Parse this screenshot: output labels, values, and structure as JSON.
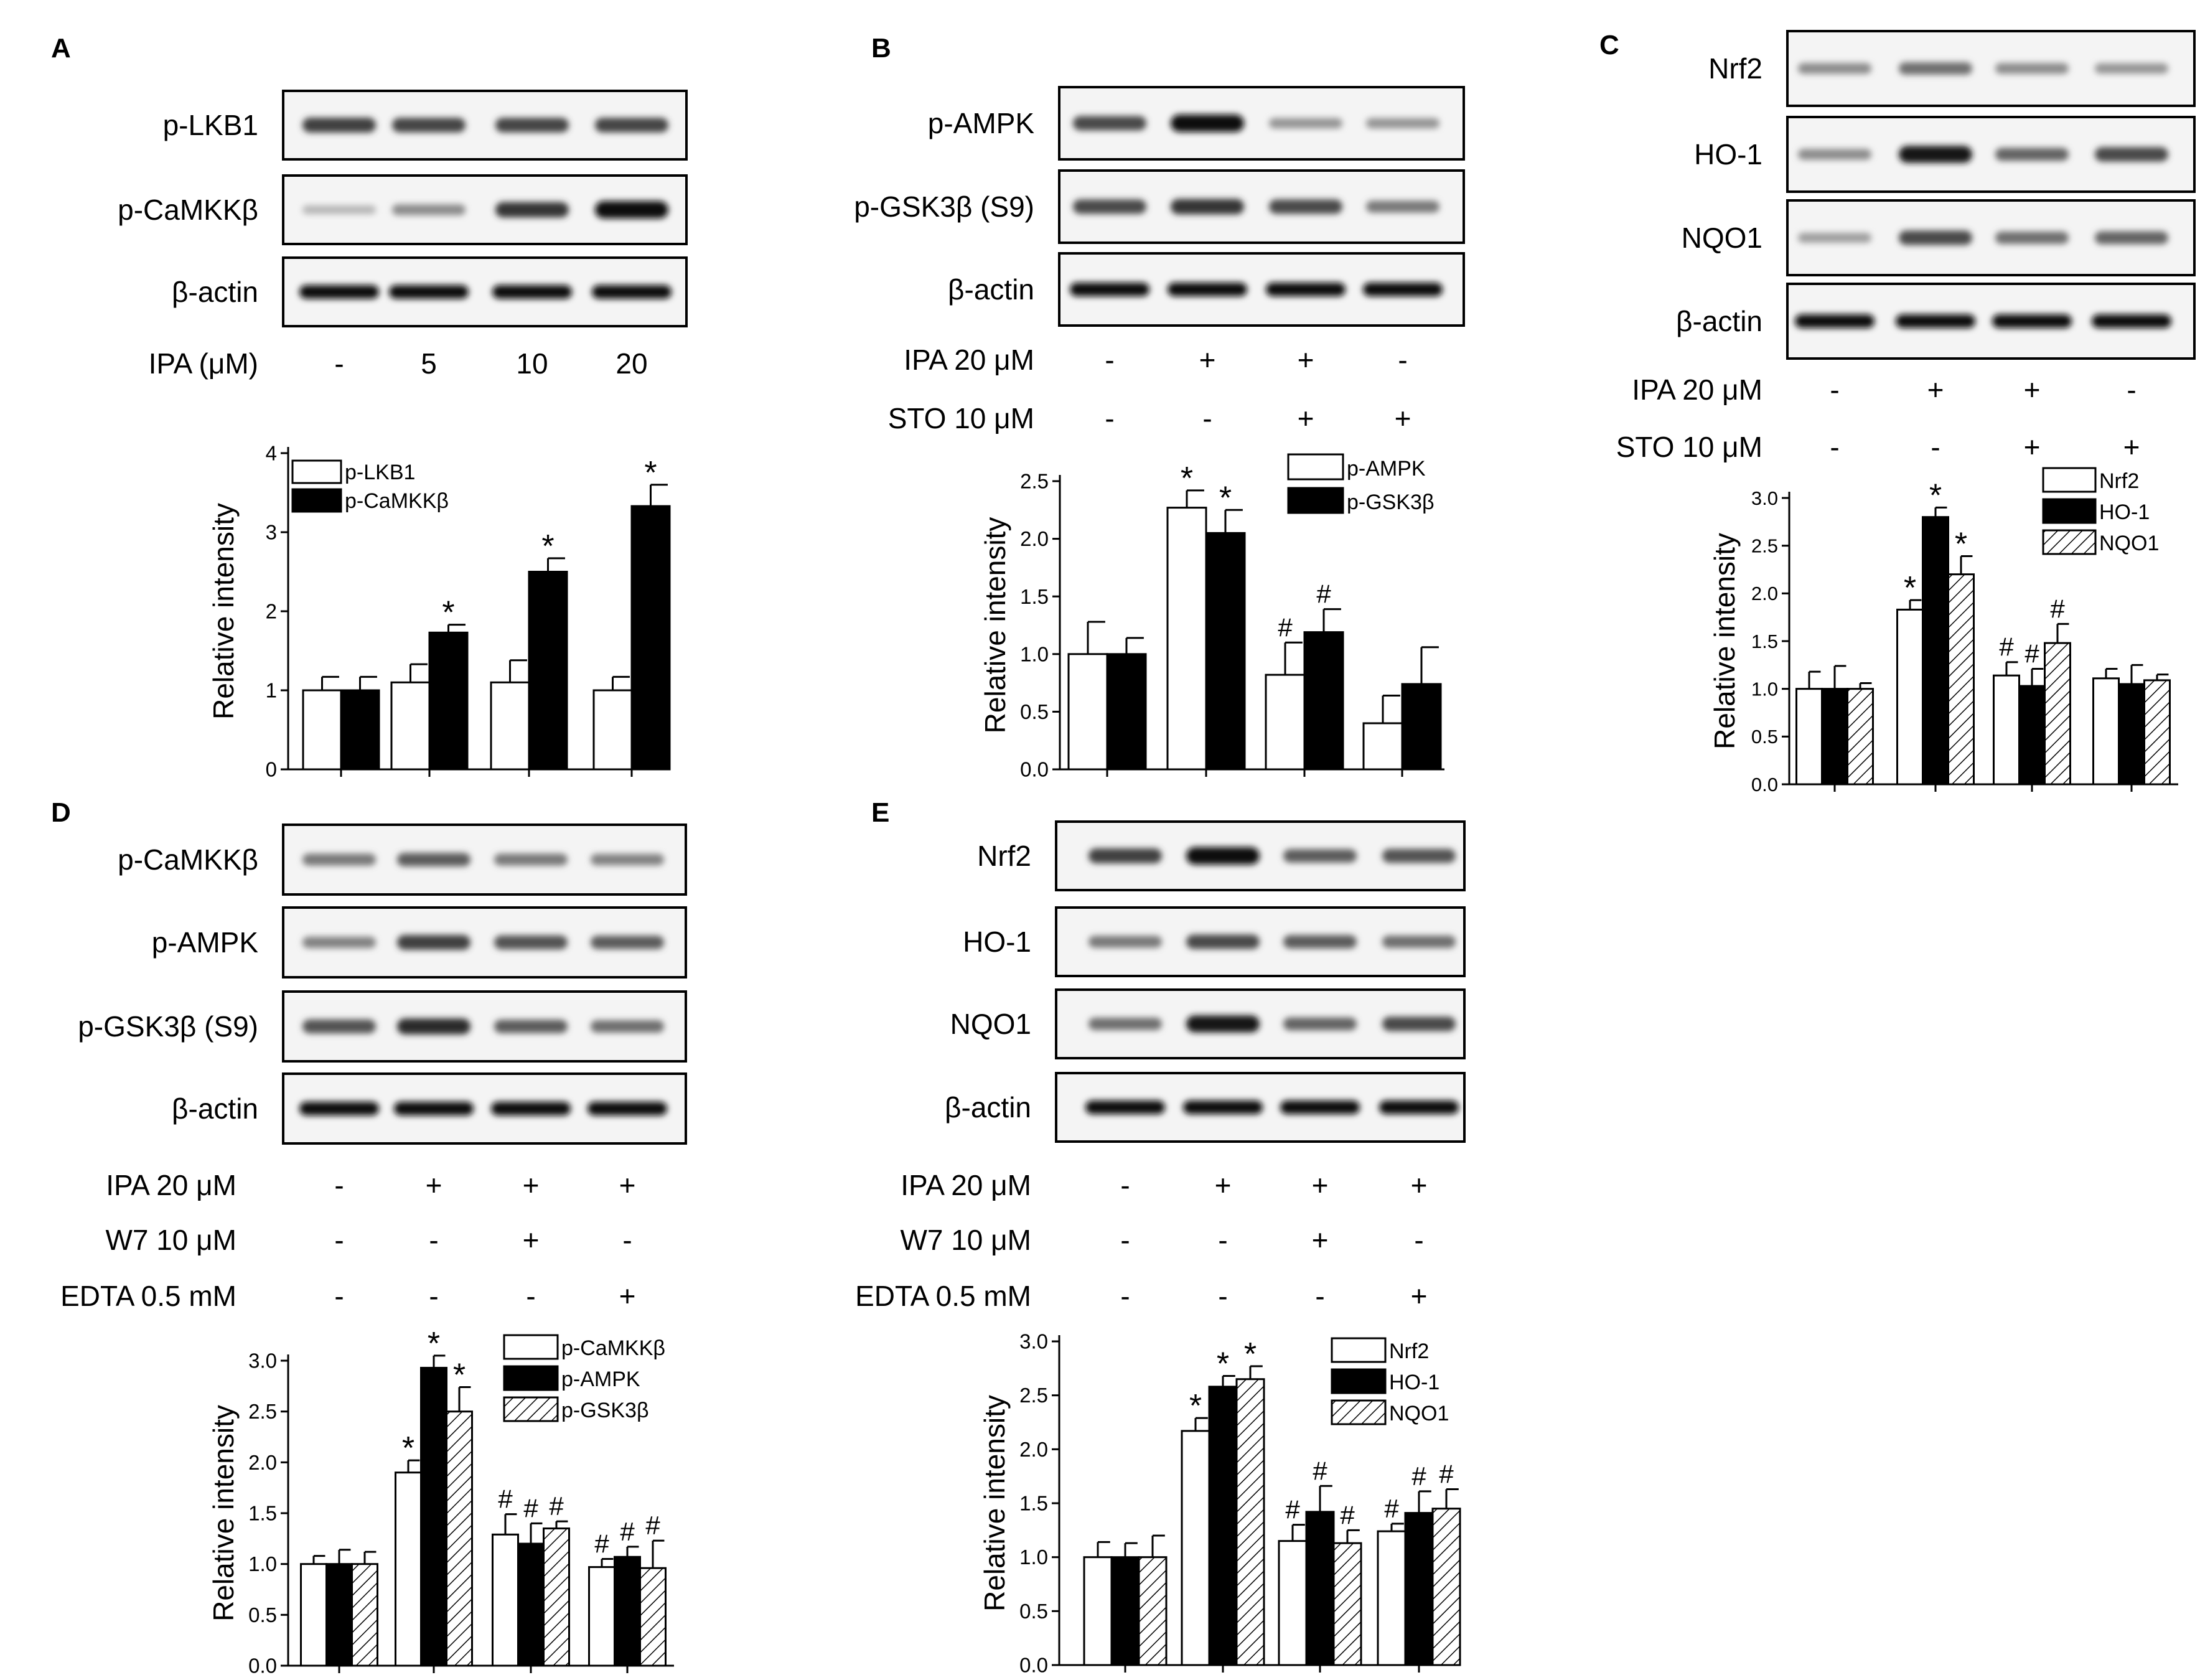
{
  "panels": [
    {
      "id": "A",
      "blot_rows": [
        "p-LKB1",
        "p-CaMKKβ",
        "β-actin"
      ],
      "band_intensity": [
        [
          0.75,
          0.72,
          0.72,
          0.72
        ],
        [
          0.12,
          0.35,
          0.8,
          1.0
        ],
        [
          1,
          1,
          1,
          1
        ]
      ],
      "conditions": [
        {
          "label": "IPA (μM)",
          "values": [
            "-",
            "5",
            "10",
            "20"
          ]
        }
      ],
      "chart_data": {
        "type": "bar",
        "ylabel": "Relative intensity",
        "ylim": [
          0,
          4
        ],
        "yticks": [
          "0",
          "1",
          "2",
          "3",
          "4"
        ],
        "series": [
          {
            "name": "p-LKB1",
            "fill": "white",
            "values": [
              1.0,
              1.1,
              1.1,
              1.0
            ],
            "errors": [
              0.17,
              0.23,
              0.28,
              0.17
            ],
            "marks": [
              "",
              "",
              "",
              ""
            ]
          },
          {
            "name": "p-CaMKKβ",
            "fill": "black",
            "values": [
              1.0,
              1.73,
              2.5,
              3.33
            ],
            "errors": [
              0.17,
              0.1,
              0.17,
              0.27
            ],
            "marks": [
              "",
              "*",
              "*",
              "*"
            ]
          }
        ]
      }
    },
    {
      "id": "B",
      "blot_rows": [
        "p-AMPK",
        "p-GSK3β (S9)",
        "β-actin"
      ],
      "band_intensity": [
        [
          0.7,
          1.0,
          0.3,
          0.3
        ],
        [
          0.7,
          0.8,
          0.7,
          0.45
        ],
        [
          1,
          1,
          1,
          1
        ]
      ],
      "conditions": [
        {
          "label": "IPA 20 μM",
          "values": [
            "-",
            "+",
            "+",
            "-"
          ]
        },
        {
          "label": "STO 10 μM",
          "values": [
            "-",
            "-",
            "+",
            "+"
          ]
        }
      ],
      "chart_data": {
        "type": "bar",
        "ylabel": "Relative intensity",
        "ylim": [
          0,
          2.5
        ],
        "yticks": [
          "0.0",
          "0.5",
          "1.0",
          "1.5",
          "2.0",
          "2.5"
        ],
        "series": [
          {
            "name": "p-AMPK",
            "fill": "white",
            "values": [
              1.0,
              2.27,
              0.82,
              0.4
            ],
            "errors": [
              0.28,
              0.15,
              0.28,
              0.24
            ],
            "marks": [
              "",
              "*",
              "#",
              ""
            ]
          },
          {
            "name": "p-GSK3β",
            "fill": "black",
            "values": [
              1.0,
              2.05,
              1.19,
              0.74
            ],
            "errors": [
              0.14,
              0.2,
              0.2,
              0.32
            ],
            "marks": [
              "",
              "*",
              "#",
              ""
            ]
          }
        ]
      }
    },
    {
      "id": "C",
      "blot_rows": [
        "Nrf2",
        "HO-1",
        "NQO1",
        "β-actin"
      ],
      "band_intensity": [
        [
          0.35,
          0.5,
          0.35,
          0.3
        ],
        [
          0.35,
          0.95,
          0.55,
          0.7
        ],
        [
          0.25,
          0.7,
          0.5,
          0.55
        ],
        [
          1,
          1,
          1,
          1
        ]
      ],
      "conditions": [
        {
          "label": "IPA 20 μM",
          "values": [
            "-",
            "+",
            "+",
            "-"
          ]
        },
        {
          "label": "STO 10 μM",
          "values": [
            "-",
            "-",
            "+",
            "+"
          ]
        }
      ],
      "chart_data": {
        "type": "bar",
        "ylabel": "Relative intensity",
        "ylim": [
          0,
          3.0
        ],
        "yticks": [
          "0.0",
          "0.5",
          "1.0",
          "1.5",
          "2.0",
          "2.5",
          "3.0"
        ],
        "series": [
          {
            "name": "Nrf2",
            "fill": "white",
            "values": [
              1.0,
              1.83,
              1.14,
              1.11
            ],
            "errors": [
              0.18,
              0.1,
              0.14,
              0.1
            ],
            "marks": [
              "",
              "*",
              "#",
              ""
            ]
          },
          {
            "name": "HO-1",
            "fill": "black",
            "values": [
              1.0,
              2.8,
              1.03,
              1.05
            ],
            "errors": [
              0.24,
              0.1,
              0.18,
              0.2
            ],
            "marks": [
              "",
              "*",
              "#",
              ""
            ]
          },
          {
            "name": "NQO1",
            "fill": "hatch",
            "values": [
              1.0,
              2.2,
              1.48,
              1.09
            ],
            "errors": [
              0.06,
              0.19,
              0.2,
              0.06
            ],
            "marks": [
              "",
              "*",
              "#",
              ""
            ]
          }
        ]
      }
    },
    {
      "id": "D",
      "blot_rows": [
        "p-CaMKKβ",
        "p-AMPK",
        "p-GSK3β (S9)",
        "β-actin"
      ],
      "band_intensity": [
        [
          0.45,
          0.6,
          0.45,
          0.4
        ],
        [
          0.4,
          0.75,
          0.65,
          0.6
        ],
        [
          0.65,
          0.85,
          0.6,
          0.5
        ],
        [
          1,
          1,
          1,
          1
        ]
      ],
      "conditions": [
        {
          "label": "IPA 20 μM",
          "values": [
            "-",
            "+",
            "+",
            "+"
          ]
        },
        {
          "label": "W7 10 μM",
          "values": [
            "-",
            "-",
            "+",
            "-"
          ]
        },
        {
          "label": "EDTA 0.5 mM",
          "values": [
            "-",
            "-",
            "-",
            "+"
          ]
        }
      ],
      "chart_data": {
        "type": "bar",
        "ylabel": "Relative intensity",
        "ylim": [
          0,
          3.0
        ],
        "yticks": [
          "0.0",
          "0.5",
          "1.0",
          "1.5",
          "2.0",
          "2.5",
          "3.0"
        ],
        "series": [
          {
            "name": "p-CaMKKβ",
            "fill": "white",
            "values": [
              1.0,
              1.9,
              1.29,
              0.97
            ],
            "errors": [
              0.08,
              0.12,
              0.2,
              0.08
            ],
            "marks": [
              "",
              "*",
              "#",
              "#"
            ]
          },
          {
            "name": "p-AMPK",
            "fill": "black",
            "values": [
              1.0,
              2.93,
              1.2,
              1.07
            ],
            "errors": [
              0.14,
              0.12,
              0.2,
              0.1
            ],
            "marks": [
              "",
              "*",
              "#",
              "#"
            ]
          },
          {
            "name": "p-GSK3β",
            "fill": "hatch",
            "values": [
              1.0,
              2.5,
              1.35,
              0.96
            ],
            "errors": [
              0.12,
              0.24,
              0.07,
              0.27
            ],
            "marks": [
              "",
              "*",
              "#",
              "#"
            ]
          }
        ]
      }
    },
    {
      "id": "E",
      "blot_rows": [
        "Nrf2",
        "HO-1",
        "NQO1",
        "β-actin"
      ],
      "band_intensity": [
        [
          0.75,
          1.0,
          0.6,
          0.65
        ],
        [
          0.45,
          0.7,
          0.6,
          0.5
        ],
        [
          0.5,
          0.95,
          0.55,
          0.7
        ],
        [
          1,
          1,
          1,
          1
        ]
      ],
      "conditions": [
        {
          "label": "IPA 20 μM",
          "values": [
            "-",
            "+",
            "+",
            "+"
          ]
        },
        {
          "label": "W7 10 μM",
          "values": [
            "-",
            "-",
            "+",
            "-"
          ]
        },
        {
          "label": "EDTA 0.5 mM",
          "values": [
            "-",
            "-",
            "-",
            "+"
          ]
        }
      ],
      "chart_data": {
        "type": "bar",
        "ylabel": "Relative intensity",
        "ylim": [
          0,
          3.0
        ],
        "yticks": [
          "0.0",
          "0.5",
          "1.0",
          "1.5",
          "2.0",
          "2.5",
          "3.0"
        ],
        "series": [
          {
            "name": "Nrf2",
            "fill": "white",
            "values": [
              1.0,
              2.17,
              1.15,
              1.24
            ],
            "errors": [
              0.14,
              0.12,
              0.15,
              0.07
            ],
            "marks": [
              "",
              "*",
              "#",
              "#"
            ]
          },
          {
            "name": "HO-1",
            "fill": "black",
            "values": [
              1.0,
              2.58,
              1.42,
              1.41
            ],
            "errors": [
              0.13,
              0.1,
              0.24,
              0.2
            ],
            "marks": [
              "",
              "*",
              "#",
              "#"
            ]
          },
          {
            "name": "NQO1",
            "fill": "hatch",
            "values": [
              1.0,
              2.65,
              1.13,
              1.45
            ],
            "errors": [
              0.2,
              0.12,
              0.12,
              0.18
            ],
            "marks": [
              "",
              "*",
              "#",
              "#"
            ]
          }
        ]
      }
    }
  ]
}
